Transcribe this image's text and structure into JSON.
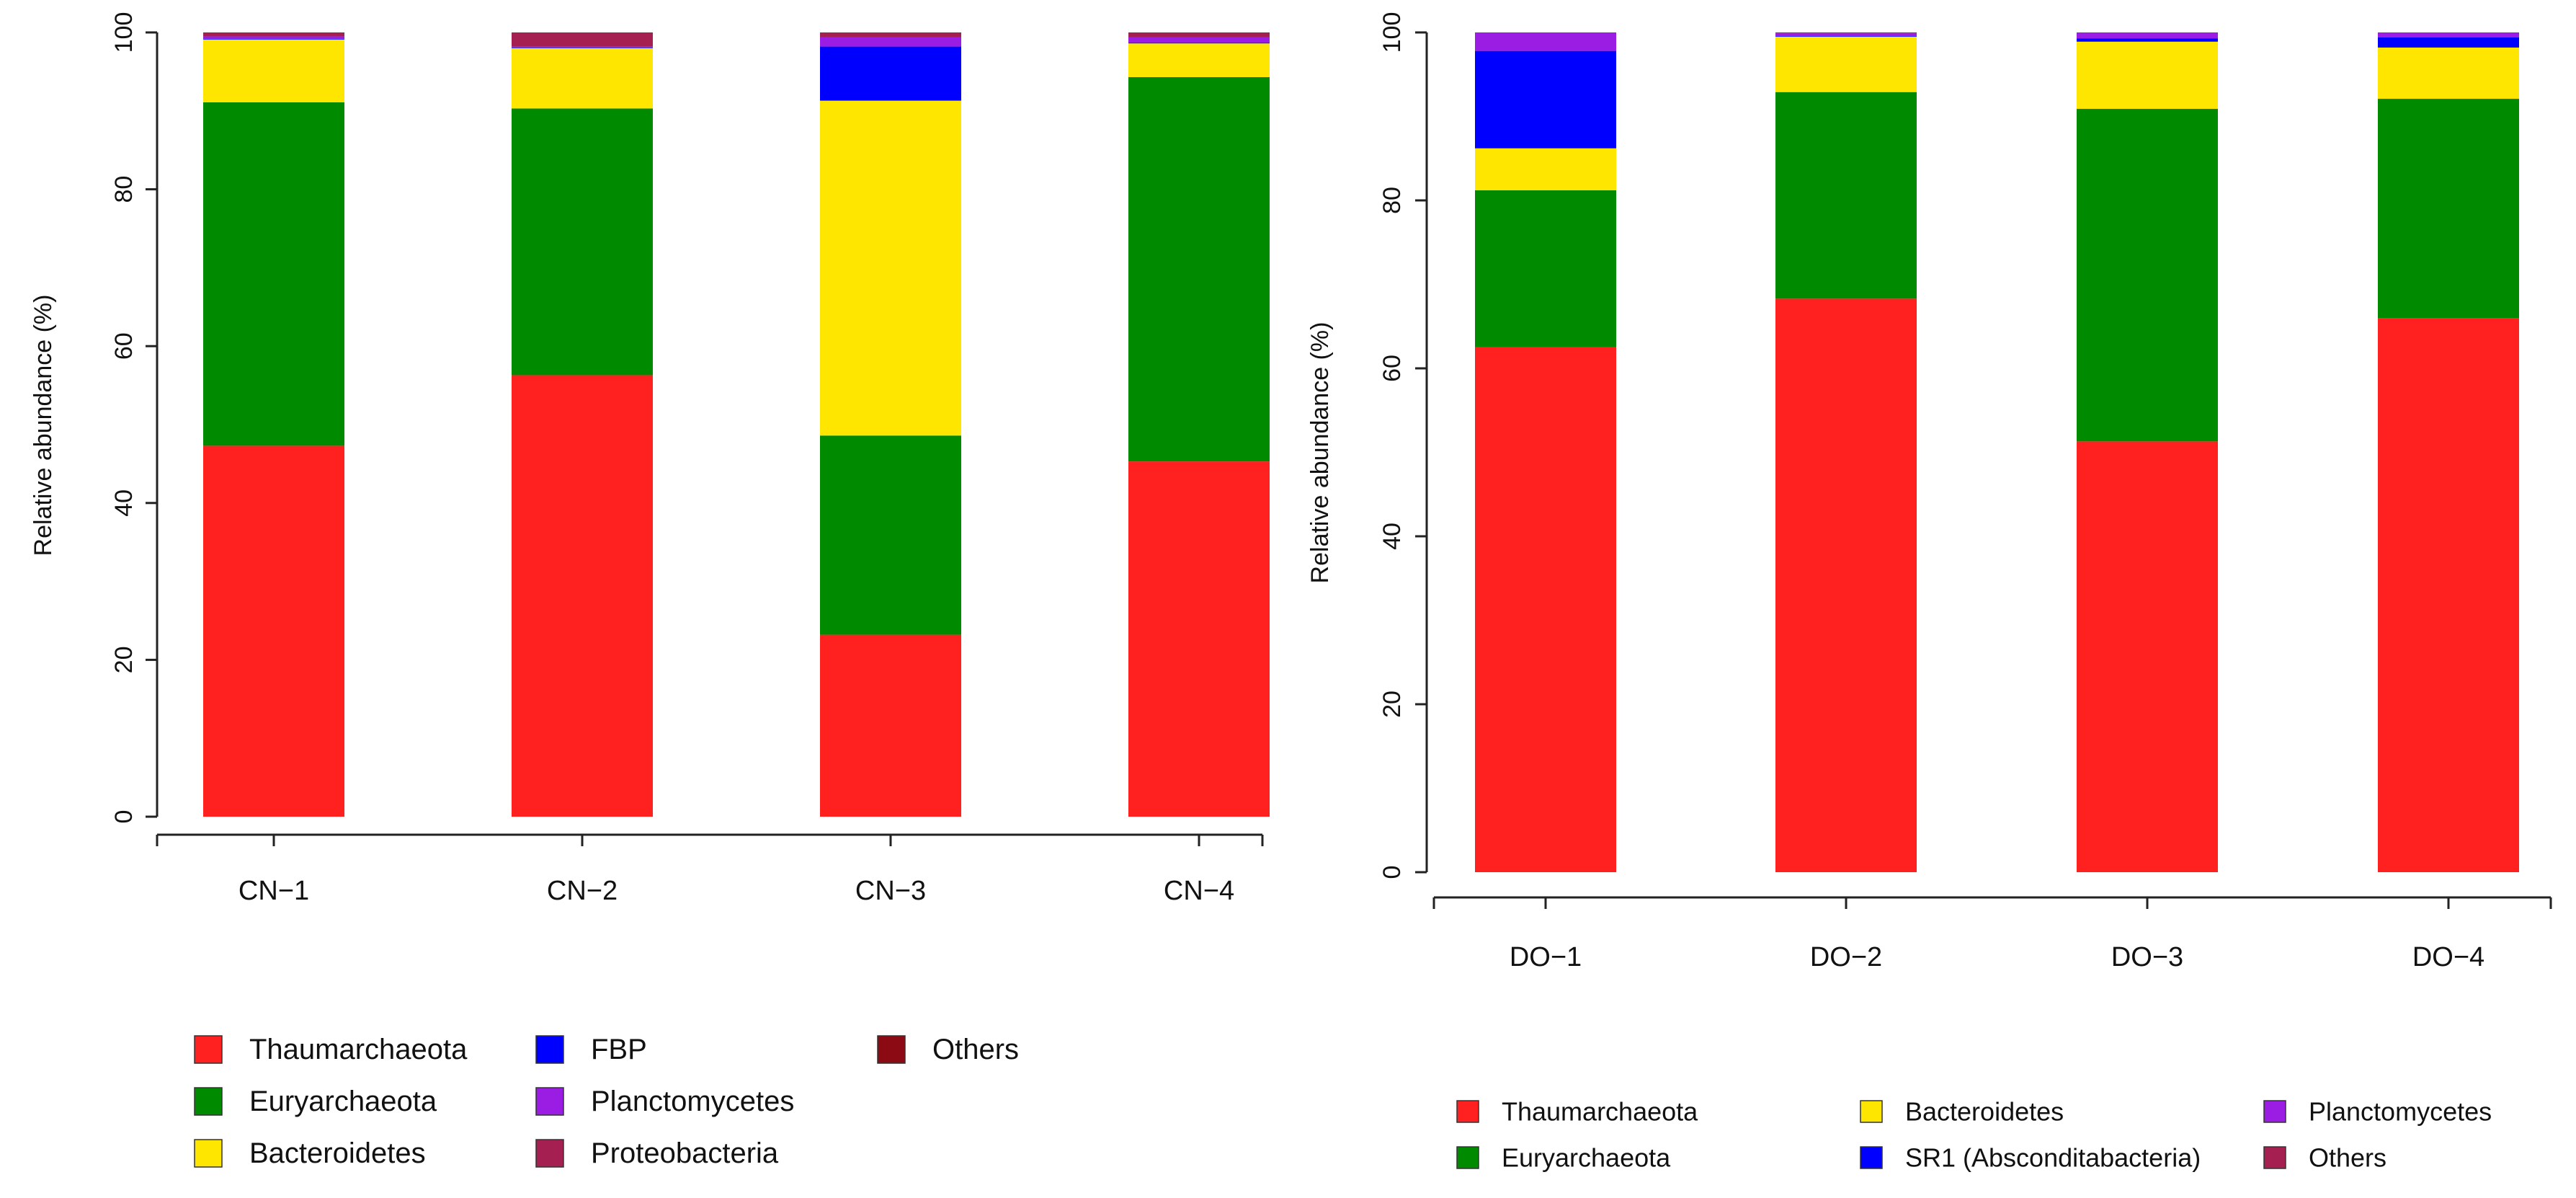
{
  "chart_data": [
    {
      "type": "bar",
      "stacked": true,
      "title": "",
      "xlabel": "",
      "ylabel": "Relative abundance (%)",
      "ylim": [
        0,
        100
      ],
      "yticks": [
        0,
        20,
        40,
        60,
        80,
        100
      ],
      "categories": [
        "CN−1",
        "CN−2",
        "CN−3",
        "CN−4"
      ],
      "series": [
        {
          "name": "Thaumarchaeota",
          "color": "#ff2020",
          "values": [
            47.3,
            56.3,
            23.2,
            45.3
          ]
        },
        {
          "name": "Euryarchaeota",
          "color": "#008a00",
          "values": [
            43.8,
            34.0,
            25.4,
            49.0
          ]
        },
        {
          "name": "Bacteroidetes",
          "color": "#ffe600",
          "values": [
            8.0,
            7.7,
            42.7,
            4.3
          ]
        },
        {
          "name": "FBP",
          "color": "#0000ff",
          "values": [
            0.1,
            0.1,
            6.9,
            0.1
          ]
        },
        {
          "name": "Planctomycetes",
          "color": "#9b1ce3",
          "values": [
            0.3,
            0.1,
            1.2,
            0.7
          ]
        },
        {
          "name": "Proteobacteria",
          "color": "#a52050",
          "values": [
            0.5,
            1.8,
            0.6,
            0.6
          ]
        },
        {
          "name": "Others",
          "color": "#8b0a14",
          "values": [
            0.0,
            0.0,
            0.0,
            0.0
          ]
        }
      ],
      "legend": {
        "columns": [
          [
            "Thaumarchaeota",
            "Euryarchaeota",
            "Bacteroidetes"
          ],
          [
            "FBP",
            "Planctomycetes",
            "Proteobacteria"
          ],
          [
            "Others"
          ]
        ]
      }
    },
    {
      "type": "bar",
      "stacked": true,
      "title": "",
      "xlabel": "",
      "ylabel": "Relative abundance (%)",
      "ylim": [
        0,
        100
      ],
      "yticks": [
        0,
        20,
        40,
        60,
        80,
        100
      ],
      "categories": [
        "DO−1",
        "DO−2",
        "DO−3",
        "DO−4"
      ],
      "series": [
        {
          "name": "Thaumarchaeota",
          "color": "#ff2020",
          "values": [
            62.5,
            68.3,
            51.3,
            66.0
          ]
        },
        {
          "name": "Euryarchaeota",
          "color": "#008a00",
          "values": [
            18.7,
            24.6,
            39.6,
            26.1
          ]
        },
        {
          "name": "Bacteroidetes",
          "color": "#ffe600",
          "values": [
            5.0,
            6.6,
            8.0,
            6.1
          ]
        },
        {
          "name": "SR1 (Absconditabacteria)",
          "color": "#0000ff",
          "values": [
            11.6,
            0.1,
            0.4,
            1.2
          ]
        },
        {
          "name": "Planctomycetes",
          "color": "#9b1ce3",
          "values": [
            2.2,
            0.3,
            0.7,
            0.6
          ]
        },
        {
          "name": "Others",
          "color": "#a52050",
          "values": [
            0.0,
            0.1,
            0.0,
            0.0
          ]
        }
      ],
      "legend": {
        "columns": [
          [
            "Thaumarchaeota",
            "Euryarchaeota"
          ],
          [
            "Bacteroidetes",
            "SR1 (Absconditabacteria)"
          ],
          [
            "Planctomycetes",
            "Others"
          ]
        ]
      }
    }
  ]
}
